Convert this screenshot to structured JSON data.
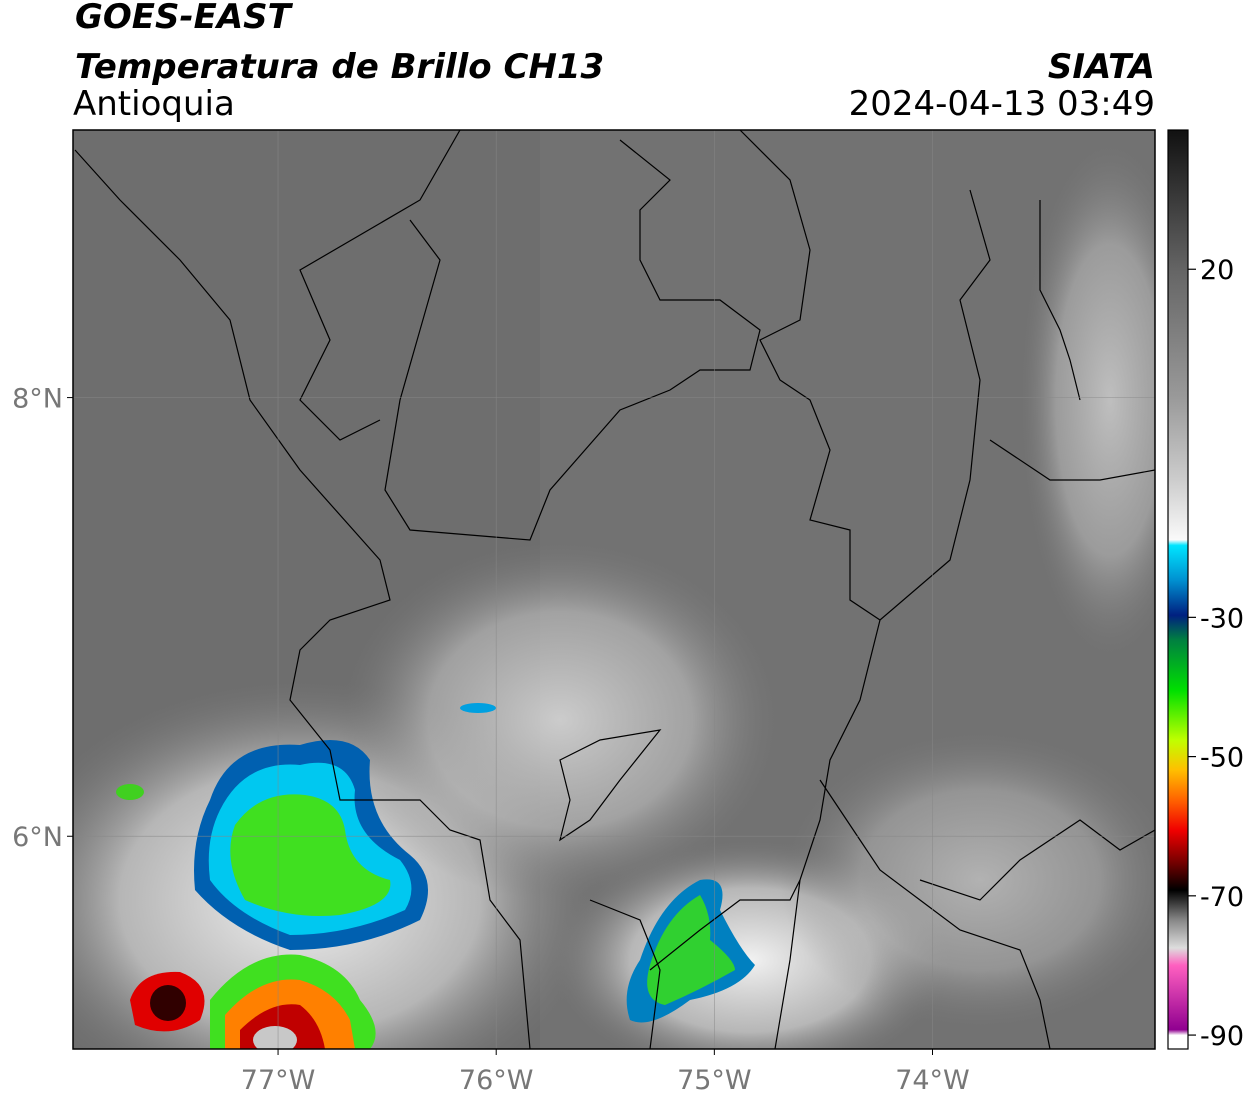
{
  "header": {
    "title": "GOES-EAST",
    "product": "Temperatura de Brillo CH13",
    "region": "Antioquia",
    "source": "SIATA",
    "datetime": "2024-04-13 03:49"
  },
  "map": {
    "xlim": [
      -77.94,
      -72.98
    ],
    "ylim": [
      5.03,
      9.22
    ],
    "xticks": [
      {
        "value": -77,
        "label": "77°W"
      },
      {
        "value": -76,
        "label": "76°W"
      },
      {
        "value": -75,
        "label": "75°W"
      },
      {
        "value": -74,
        "label": "74°W"
      }
    ],
    "yticks": [
      {
        "value": 8,
        "label": "8°N"
      },
      {
        "value": 6,
        "label": "6°N"
      }
    ],
    "grid": true
  },
  "colorbar": {
    "lim": [
      -92,
      40
    ],
    "ticks": [
      20,
      -30,
      -50,
      -70,
      -90
    ]
  }
}
